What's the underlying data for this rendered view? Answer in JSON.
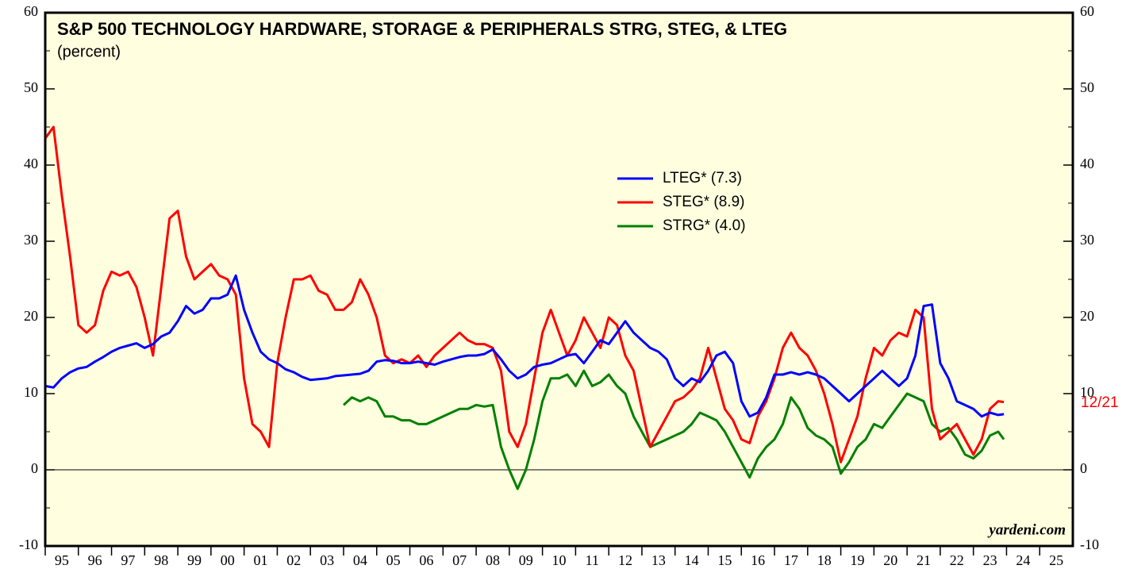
{
  "chart_data": {
    "type": "line",
    "title": "S&P 500 TECHNOLOGY HARDWARE, STORAGE & PERIPHERALS STRG, STEG, & LTEG",
    "subtitle": "(percent)",
    "annotations": [
      "12/21",
      "yardeni.com"
    ],
    "legend": "upper center",
    "grid": false,
    "xlim": [
      1995,
      2026
    ],
    "ylim": [
      -10,
      60
    ],
    "yticks": [
      -10,
      0,
      10,
      20,
      30,
      40,
      50,
      60
    ],
    "xticks": [
      {
        "value": 1995,
        "label": "95"
      },
      {
        "value": 1996,
        "label": "96"
      },
      {
        "value": 1997,
        "label": "97"
      },
      {
        "value": 1998,
        "label": "98"
      },
      {
        "value": 1999,
        "label": "99"
      },
      {
        "value": 2000,
        "label": "00"
      },
      {
        "value": 2001,
        "label": "01"
      },
      {
        "value": 2002,
        "label": "02"
      },
      {
        "value": 2003,
        "label": "03"
      },
      {
        "value": 2004,
        "label": "04"
      },
      {
        "value": 2005,
        "label": "05"
      },
      {
        "value": 2006,
        "label": "06"
      },
      {
        "value": 2007,
        "label": "07"
      },
      {
        "value": 2008,
        "label": "08"
      },
      {
        "value": 2009,
        "label": "09"
      },
      {
        "value": 2010,
        "label": "10"
      },
      {
        "value": 2011,
        "label": "11"
      },
      {
        "value": 2012,
        "label": "12"
      },
      {
        "value": 2013,
        "label": "13"
      },
      {
        "value": 2014,
        "label": "14"
      },
      {
        "value": 2015,
        "label": "15"
      },
      {
        "value": 2016,
        "label": "16"
      },
      {
        "value": 2017,
        "label": "17"
      },
      {
        "value": 2018,
        "label": "18"
      },
      {
        "value": 2019,
        "label": "19"
      },
      {
        "value": 2020,
        "label": "20"
      },
      {
        "value": 2021,
        "label": "21"
      },
      {
        "value": 2022,
        "label": "22"
      },
      {
        "value": 2023,
        "label": "23"
      },
      {
        "value": 2024,
        "label": "24"
      },
      {
        "value": 2025,
        "label": "25"
      }
    ],
    "x": [
      1995,
      1995.25,
      1995.5,
      1995.75,
      1996,
      1996.25,
      1996.5,
      1996.75,
      1997,
      1997.25,
      1997.5,
      1997.75,
      1998,
      1998.25,
      1998.5,
      1998.75,
      1999,
      1999.25,
      1999.5,
      1999.75,
      2000,
      2000.25,
      2000.5,
      2000.75,
      2001,
      2001.25,
      2001.5,
      2001.75,
      2002,
      2002.25,
      2002.5,
      2002.75,
      2003,
      2003.25,
      2003.5,
      2003.75,
      2004,
      2004.25,
      2004.5,
      2004.75,
      2005,
      2005.25,
      2005.5,
      2005.75,
      2006,
      2006.25,
      2006.5,
      2006.75,
      2007,
      2007.25,
      2007.5,
      2007.75,
      2008,
      2008.25,
      2008.5,
      2008.75,
      2009,
      2009.25,
      2009.5,
      2009.75,
      2010,
      2010.25,
      2010.5,
      2010.75,
      2011,
      2011.25,
      2011.5,
      2011.75,
      2012,
      2012.25,
      2012.5,
      2012.75,
      2013,
      2013.25,
      2013.5,
      2013.75,
      2014,
      2014.25,
      2014.5,
      2014.75,
      2015,
      2015.25,
      2015.5,
      2015.75,
      2016,
      2016.25,
      2016.5,
      2016.75,
      2017,
      2017.25,
      2017.5,
      2017.75,
      2018,
      2018.25,
      2018.5,
      2018.75,
      2019,
      2019.25,
      2019.5,
      2019.75,
      2020,
      2020.25,
      2020.5,
      2020.75,
      2021,
      2021.25,
      2021.5,
      2021.75,
      2022,
      2022.25,
      2022.5,
      2022.75,
      2023,
      2023.25,
      2023.5,
      2023.75,
      2023.92
    ],
    "series": [
      {
        "name": "LTEG* (7.3)",
        "color": "#0000ff",
        "values": [
          11,
          10.8,
          12,
          12.8,
          13.3,
          13.5,
          14.2,
          14.8,
          15.5,
          16,
          16.3,
          16.6,
          16,
          16.5,
          17.5,
          18,
          19.5,
          21.5,
          20.5,
          21,
          22.5,
          22.5,
          23,
          25.5,
          21,
          18,
          15.5,
          14.5,
          14,
          13.2,
          12.8,
          12.2,
          11.8,
          11.9,
          12,
          12.3,
          12.4,
          12.5,
          12.6,
          13,
          14.2,
          14.4,
          14.3,
          14,
          14,
          14.2,
          14,
          13.8,
          14.2,
          14.5,
          14.8,
          15,
          15,
          15.2,
          15.8,
          14.5,
          13,
          12,
          12.5,
          13.5,
          13.8,
          14,
          14.5,
          15,
          15.2,
          14,
          15.5,
          17,
          16.5,
          18,
          19.5,
          18,
          17,
          16,
          15.5,
          14.5,
          12,
          11,
          12,
          11.5,
          13,
          15,
          15.5,
          14,
          9,
          7,
          7.5,
          9.5,
          12.5,
          12.5,
          12.8,
          12.5,
          12.8,
          12.5,
          12,
          11,
          10,
          9,
          10,
          11,
          12,
          13,
          12,
          11,
          12,
          15,
          21.5,
          21.7,
          14,
          12,
          9,
          8.5,
          8,
          7,
          7.5,
          7.2,
          7.3
        ]
      },
      {
        "name": "STEG* (8.9)",
        "color": "#ff0000",
        "values": [
          43.5,
          45,
          36,
          28,
          19,
          18,
          19,
          23.5,
          26,
          25.5,
          26,
          24,
          20,
          15,
          24,
          33,
          34,
          28,
          25,
          26,
          27,
          25.5,
          25,
          23,
          12,
          6,
          5,
          3,
          14,
          20,
          25,
          25,
          25.5,
          23.5,
          23,
          21,
          21,
          22,
          25,
          23,
          20,
          15,
          14,
          14.5,
          14,
          15,
          13.5,
          15,
          16,
          17,
          18,
          17,
          16.5,
          16.5,
          16,
          13,
          5,
          3,
          6,
          12,
          18,
          21,
          18,
          15,
          17,
          20,
          18,
          16,
          20,
          19,
          15,
          13,
          8,
          3,
          5,
          7,
          9,
          9.5,
          10.5,
          12,
          16,
          12,
          8,
          6.5,
          4,
          3.5,
          7,
          9,
          12,
          16,
          18,
          16,
          15,
          13,
          10,
          6,
          1,
          4,
          7,
          12,
          16,
          15,
          17,
          18,
          17.5,
          21,
          20,
          8,
          4,
          5,
          6,
          4,
          2,
          4,
          8,
          9,
          8.9
        ]
      },
      {
        "name": "STRG* (4.0)",
        "color": "#008000",
        "values": [
          null,
          null,
          null,
          null,
          null,
          null,
          null,
          null,
          null,
          null,
          null,
          null,
          null,
          null,
          null,
          null,
          null,
          null,
          null,
          null,
          null,
          null,
          null,
          null,
          null,
          null,
          null,
          null,
          null,
          null,
          null,
          null,
          null,
          null,
          null,
          null,
          8.5,
          9.5,
          9,
          9.5,
          9,
          7,
          7,
          6.5,
          6.5,
          6,
          6,
          6.5,
          7,
          7.5,
          8,
          8,
          8.5,
          8.3,
          8.5,
          3,
          0,
          -2.5,
          0,
          4,
          9,
          12,
          12,
          12.5,
          11,
          13,
          11,
          11.5,
          12.5,
          11,
          10,
          7,
          5,
          3,
          3.5,
          4,
          4.5,
          5,
          6,
          7.5,
          7,
          6.5,
          5,
          3,
          1,
          -1,
          1.5,
          3,
          4,
          6,
          9.5,
          8,
          5.5,
          4.5,
          4,
          3,
          -0.5,
          1,
          3,
          4,
          6,
          5.5,
          7,
          8.5,
          10,
          9.5,
          9,
          6,
          5,
          5.5,
          4,
          2,
          1.5,
          2.5,
          4.5,
          5,
          4.0
        ]
      }
    ]
  }
}
